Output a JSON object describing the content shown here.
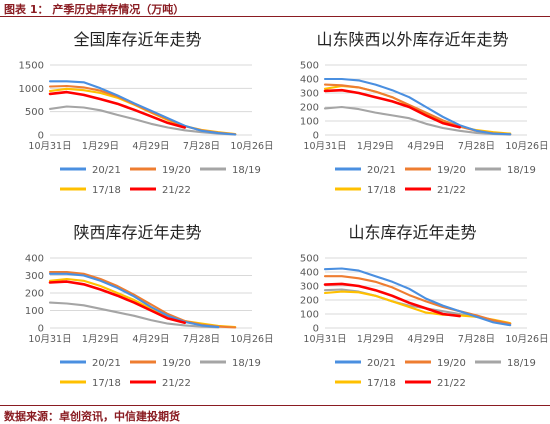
{
  "figure": {
    "header": "图表 1：  产季历史库存情况（万吨）",
    "source": "数据来源：卓创资讯，中信建投期货"
  },
  "colors": {
    "20/21": "#4a8fe0",
    "19/20": "#ee7d31",
    "18/19": "#a5a5a5",
    "17/18": "#ffc000",
    "21/22": "#ff0000"
  },
  "chart_data": [
    {
      "type": "line",
      "title": "全国库存近年走势",
      "x": [
        "10月31日",
        "11月30日",
        "12月30日",
        "1月29日",
        "2月28日",
        "3月30日",
        "4月29日",
        "5月29日",
        "6月28日",
        "7月28日",
        "8月27日",
        "9月26日",
        "10月26日"
      ],
      "xticks": [
        "10月31日",
        "1月29日",
        "4月29日",
        "7月28日",
        "10月26日"
      ],
      "yticks": [
        0,
        500,
        1000,
        1500
      ],
      "ylim": [
        0,
        1500
      ],
      "series": [
        {
          "name": "20/21",
          "values": [
            1150,
            1150,
            1130,
            1000,
            850,
            680,
            520,
            360,
            200,
            90,
            40,
            10,
            null
          ]
        },
        {
          "name": "19/20",
          "values": [
            1040,
            1050,
            1020,
            950,
            830,
            660,
            490,
            340,
            190,
            100,
            50,
            15,
            null
          ]
        },
        {
          "name": "18/19",
          "values": [
            560,
            610,
            590,
            530,
            430,
            340,
            240,
            160,
            100,
            60,
            30,
            8,
            null
          ]
        },
        {
          "name": "17/18",
          "values": [
            940,
            990,
            960,
            900,
            800,
            650,
            480,
            320,
            190,
            110,
            60,
            20,
            null
          ]
        },
        {
          "name": "21/22",
          "values": [
            880,
            920,
            860,
            770,
            670,
            540,
            400,
            260,
            160,
            null,
            null,
            null,
            null
          ]
        }
      ],
      "legend_rows": [
        [
          "20/21",
          "19/20",
          "18/19"
        ],
        [
          "17/18",
          "21/22"
        ]
      ]
    },
    {
      "type": "line",
      "title": "山东陕西以外库存近年走势",
      "x": [
        "10月31日",
        "11月30日",
        "12月30日",
        "1月29日",
        "2月28日",
        "3月30日",
        "4月29日",
        "5月29日",
        "6月28日",
        "7月28日",
        "8月27日",
        "9月26日",
        "10月26日"
      ],
      "xticks": [
        "10月31日",
        "1月29日",
        "4月29日",
        "7月28日",
        "10月26日"
      ],
      "yticks": [
        0,
        100,
        200,
        300,
        400,
        500
      ],
      "ylim": [
        0,
        500
      ],
      "series": [
        {
          "name": "20/21",
          "values": [
            400,
            400,
            390,
            360,
            320,
            270,
            200,
            130,
            70,
            30,
            10,
            5,
            null
          ]
        },
        {
          "name": "19/20",
          "values": [
            360,
            355,
            340,
            310,
            270,
            215,
            160,
            105,
            60,
            30,
            12,
            5,
            null
          ]
        },
        {
          "name": "18/19",
          "values": [
            190,
            200,
            185,
            160,
            140,
            120,
            80,
            50,
            30,
            15,
            8,
            3,
            null
          ]
        },
        {
          "name": "17/18",
          "values": [
            330,
            350,
            340,
            310,
            270,
            210,
            150,
            100,
            60,
            35,
            20,
            10,
            null
          ]
        },
        {
          "name": "21/22",
          "values": [
            315,
            320,
            300,
            270,
            240,
            200,
            140,
            85,
            55,
            null,
            null,
            null,
            null
          ]
        }
      ],
      "legend_rows": [
        [
          "20/21",
          "19/20",
          "18/19"
        ],
        [
          "17/18",
          "21/22"
        ]
      ]
    },
    {
      "type": "line",
      "title": "陕西库存近年走势",
      "x": [
        "10月31日",
        "11月30日",
        "12月30日",
        "1月29日",
        "2月28日",
        "3月30日",
        "4月29日",
        "5月29日",
        "6月28日",
        "7月28日",
        "8月27日",
        "9月26日",
        "10月26日"
      ],
      "xticks": [
        "10月31日",
        "1月29日",
        "4月29日",
        "7月28日",
        "10月26日"
      ],
      "yticks": [
        0,
        100,
        200,
        300,
        400
      ],
      "ylim": [
        0,
        400
      ],
      "series": [
        {
          "name": "20/21",
          "values": [
            310,
            310,
            300,
            270,
            230,
            180,
            120,
            70,
            35,
            15,
            5,
            null,
            null
          ]
        },
        {
          "name": "19/20",
          "values": [
            320,
            320,
            310,
            280,
            240,
            190,
            135,
            80,
            40,
            18,
            8,
            3,
            null
          ]
        },
        {
          "name": "18/19",
          "values": [
            145,
            140,
            130,
            110,
            90,
            70,
            45,
            25,
            15,
            8,
            4,
            null,
            null
          ]
        },
        {
          "name": "17/18",
          "values": [
            270,
            280,
            270,
            240,
            200,
            160,
            110,
            70,
            40,
            25,
            12,
            5,
            null
          ]
        },
        {
          "name": "21/22",
          "values": [
            260,
            265,
            250,
            220,
            185,
            145,
            100,
            55,
            30,
            null,
            null,
            null,
            null
          ]
        }
      ],
      "legend_rows": [
        [
          "20/21",
          "19/20",
          "18/19"
        ],
        [
          "17/18",
          "21/22"
        ]
      ]
    },
    {
      "type": "line",
      "title": "山东库存近年走势",
      "x": [
        "10月31日",
        "11月30日",
        "12月30日",
        "1月29日",
        "2月28日",
        "3月30日",
        "4月29日",
        "5月29日",
        "6月28日",
        "7月28日",
        "8月27日",
        "9月26日",
        "10月26日"
      ],
      "xticks": [
        "10月31日",
        "1月29日",
        "4月29日",
        "7月28日",
        "10月26日"
      ],
      "yticks": [
        0,
        100,
        200,
        300,
        400,
        500
      ],
      "ylim": [
        0,
        500
      ],
      "series": [
        {
          "name": "20/21",
          "values": [
            420,
            425,
            410,
            370,
            330,
            280,
            210,
            160,
            120,
            80,
            40,
            20,
            null
          ]
        },
        {
          "name": "19/20",
          "values": [
            370,
            370,
            355,
            330,
            290,
            235,
            190,
            150,
            120,
            90,
            55,
            30,
            null
          ]
        },
        {
          "name": "18/19",
          "values": [
            270,
            275,
            260,
            230,
            190,
            160,
            140,
            120,
            100,
            80,
            55,
            30,
            null
          ]
        },
        {
          "name": "17/18",
          "values": [
            250,
            260,
            255,
            230,
            190,
            150,
            110,
            95,
            90,
            80,
            60,
            35,
            null
          ]
        },
        {
          "name": "21/22",
          "values": [
            310,
            315,
            300,
            270,
            230,
            180,
            140,
            100,
            85,
            null,
            null,
            null,
            null
          ]
        }
      ],
      "legend_rows": [
        [
          "20/21",
          "19/20",
          "18/19"
        ],
        [
          "17/18",
          "21/22"
        ]
      ]
    }
  ]
}
